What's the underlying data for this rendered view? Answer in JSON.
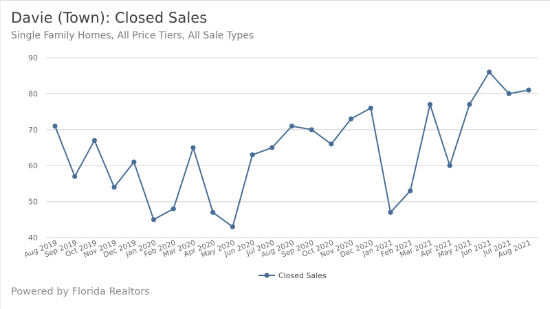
{
  "header": {
    "title": "Davie (Town): Closed Sales",
    "subtitle": "Single Family Homes, All Price Tiers, All Sale Types"
  },
  "footer": {
    "text": "Powered by Florida Realtors"
  },
  "colors": {
    "series": "#466e96",
    "grid": "#e0e0e0",
    "axis_text": "#666666"
  },
  "chart_data": {
    "type": "line",
    "title": "Davie (Town): Closed Sales",
    "subtitle": "Single Family Homes, All Price Tiers, All Sale Types",
    "xlabel": "",
    "ylabel": "",
    "ylim": [
      40,
      90
    ],
    "yticks": [
      40,
      50,
      60,
      70,
      80,
      90
    ],
    "grid": true,
    "legend_position": "bottom",
    "categories": [
      "Aug 2019",
      "Sep 2019",
      "Oct 2019",
      "Nov 2019",
      "Dec 2019",
      "Jan 2020",
      "Feb 2020",
      "Mar 2020",
      "Apr 2020",
      "May 2020",
      "Jun 2020",
      "Jul 2020",
      "Aug 2020",
      "Sep 2020",
      "Oct 2020",
      "Nov 2020",
      "Dec 2020",
      "Jan 2021",
      "Feb 2021",
      "Mar 2021",
      "Apr 2021",
      "May 2021",
      "Jun 2021",
      "Jul 2021",
      "Aug 2021"
    ],
    "series": [
      {
        "name": "Closed Sales",
        "values": [
          71,
          57,
          67,
          54,
          61,
          45,
          48,
          65,
          47,
          43,
          63,
          65,
          71,
          70,
          66,
          73,
          76,
          47,
          53,
          77,
          60,
          77,
          86,
          80,
          81
        ]
      }
    ]
  }
}
